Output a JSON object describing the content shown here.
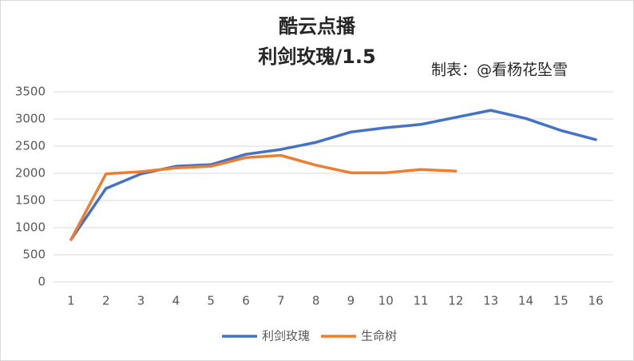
{
  "chart_data": {
    "type": "line",
    "title": "酷云点播",
    "subtitle": "利剑玫瑰/1.5",
    "annotation": "制表：@看杨花坠雪",
    "categories": [
      "1",
      "2",
      "3",
      "4",
      "5",
      "6",
      "7",
      "8",
      "9",
      "10",
      "11",
      "12",
      "13",
      "14",
      "15",
      "16"
    ],
    "series": [
      {
        "name": "利剑玫瑰",
        "color": "#4472c4",
        "values": [
          780,
          1720,
          1990,
          2130,
          2160,
          2350,
          2440,
          2570,
          2760,
          2840,
          2900,
          3030,
          3160,
          3010,
          2790,
          2620
        ]
      },
      {
        "name": "生命树",
        "color": "#ed7d31",
        "values": [
          780,
          1990,
          2030,
          2100,
          2130,
          2290,
          2330,
          2150,
          2010,
          2010,
          2070,
          2040,
          null,
          null,
          null,
          null
        ]
      }
    ],
    "ylim": [
      0,
      3500
    ],
    "yticks": [
      0,
      500,
      1000,
      1500,
      2000,
      2500,
      3000,
      3500
    ],
    "grid": true,
    "legend": "bottom"
  }
}
